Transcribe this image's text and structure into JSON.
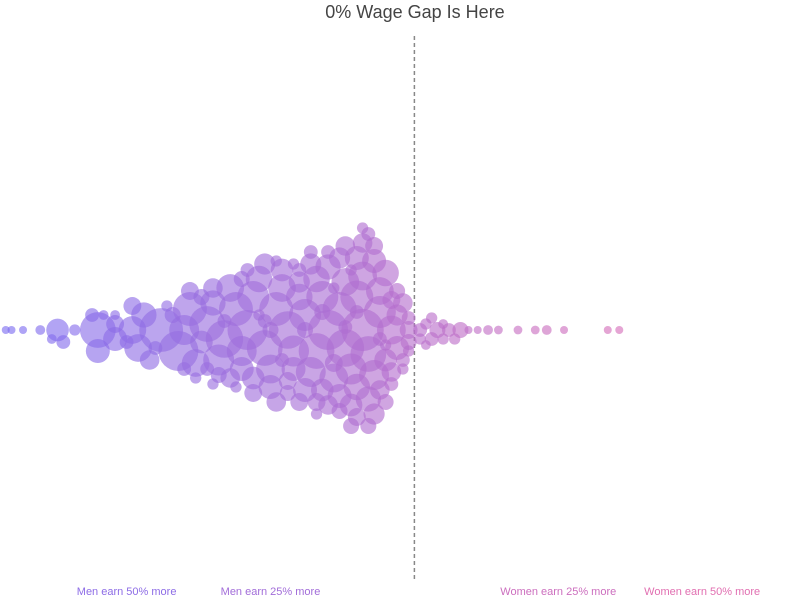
{
  "chart_data": {
    "type": "scatter",
    "annotation": {
      "text": "0% Wage Gap Is Here",
      "x": 0
    },
    "xlim": [
      -72,
      67
    ],
    "xticks": [
      {
        "value": -50,
        "label": "Men earn 50% more"
      },
      {
        "value": -25,
        "label": "Men earn 25% more"
      },
      {
        "value": 25,
        "label": "Women earn 25% more"
      },
      {
        "value": 50,
        "label": "Women earn 50% more"
      }
    ],
    "colors": [
      "#7b6cf2",
      "#ef6fa8"
    ],
    "x": [
      -71,
      -70,
      -68,
      -65,
      -63,
      -62,
      -61,
      -59,
      -56,
      -55,
      -55,
      -54,
      -52,
      -52,
      -52,
      -50,
      -49,
      -49,
      -48,
      -47,
      -46,
      -45,
      -44,
      -43,
      -42,
      -41,
      -40,
      -40,
      -39,
      -39,
      -38,
      -38,
      -37,
      -37,
      -36,
      -36,
      -35,
      -35,
      -35,
      -34,
      -34,
      -33,
      -33,
      -32,
      -32,
      -31,
      -31,
      -30,
      -30,
      -30,
      -29,
      -29,
      -28,
      -28,
      -28,
      -27,
      -27,
      -26,
      -26,
      -26,
      -25,
      -25,
      -25,
      -24,
      -24,
      -24,
      -23,
      -23,
      -23,
      -22,
      -22,
      -22,
      -21,
      -21,
      -21,
      -20,
      -20,
      -20,
      -20,
      -19,
      -19,
      -19,
      -18,
      -18,
      -18,
      -17,
      -17,
      -17,
      -17,
      -16,
      -16,
      -16,
      -15,
      -15,
      -15,
      -15,
      -14,
      -14,
      -14,
      -13,
      -13,
      -13,
      -13,
      -12,
      -12,
      -12,
      -12,
      -11,
      -11,
      -11,
      -11,
      -10,
      -10,
      -10,
      -10,
      -10,
      -9,
      -9,
      -9,
      -9,
      -8,
      -8,
      -8,
      -8,
      -7,
      -7,
      -7,
      -7,
      -6,
      -6,
      -6,
      -6,
      -5,
      -5,
      -5,
      -5,
      -4,
      -4,
      -4,
      -4,
      -3,
      -3,
      -3,
      -2,
      -2,
      -2,
      -1,
      -1,
      -1,
      -1,
      1,
      1,
      2,
      2,
      3,
      3,
      4,
      5,
      5,
      6,
      7,
      8,
      9.4,
      11,
      12.8,
      14.6,
      18,
      21,
      23,
      26,
      33.6,
      35.6
    ],
    "sizes": [
      1,
      1,
      1,
      1.5,
      1.5,
      8,
      3,
      2,
      3,
      20,
      9,
      1.5,
      9,
      5,
      1.5,
      3,
      12,
      5,
      12,
      10,
      6,
      3,
      30,
      2,
      4,
      25,
      14,
      3,
      18,
      5,
      2,
      12,
      8,
      4,
      20,
      3,
      10,
      6,
      2,
      15,
      4,
      22,
      3,
      12,
      6,
      18,
      2,
      9,
      4,
      14,
      25,
      3,
      8,
      5,
      16,
      2,
      11,
      7,
      20,
      3,
      9,
      4,
      13,
      6,
      2,
      18,
      8,
      3,
      12,
      5,
      22,
      4,
      9,
      2,
      15,
      7,
      3,
      11,
      5,
      16,
      4,
      9,
      14,
      3,
      7,
      20,
      5,
      2,
      11,
      8,
      16,
      4,
      6,
      25,
      3,
      10,
      13,
      5,
      2,
      9,
      18,
      4,
      7,
      12,
      3,
      22,
      6,
      15,
      4,
      8,
      2,
      11,
      5,
      17,
      3,
      9,
      28,
      6,
      2,
      13,
      10,
      4,
      20,
      3,
      7,
      14,
      5,
      9,
      12,
      3,
      6,
      16,
      4,
      8,
      2,
      11,
      6,
      13,
      3,
      5,
      9,
      4,
      7,
      3,
      6,
      2,
      4,
      3,
      5,
      2,
      2,
      3,
      1.5,
      2,
      2,
      3,
      4,
      2,
      1.5,
      3,
      2,
      4,
      1,
      1,
      1.5,
      1.2,
      1.2,
      1.2,
      1.5,
      1,
      1,
      1
    ]
  }
}
